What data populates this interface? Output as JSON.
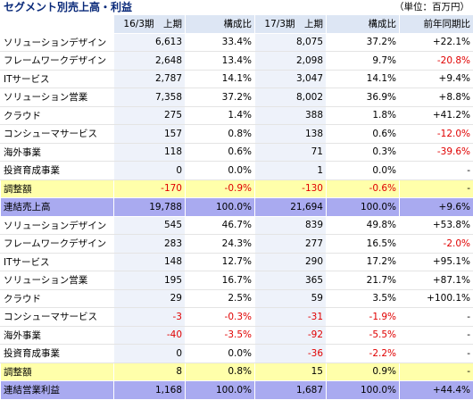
{
  "title": "セグメント別売上高・利益",
  "unit": "（単位：百万円）",
  "headers": [
    "16/3期　上期",
    "構成比",
    "17/3期　上期",
    "構成比",
    "前年同期比"
  ],
  "rows": [
    {
      "type": "normal",
      "cells": [
        "ソリューションデザイン",
        "6,613",
        "33.4%",
        "8,075",
        "37.2%",
        "+22.1%"
      ],
      "neg": []
    },
    {
      "type": "normal",
      "cells": [
        "フレームワークデザイン",
        "2,648",
        "13.4%",
        "2,098",
        "9.7%",
        "-20.8%"
      ],
      "neg": [
        5
      ]
    },
    {
      "type": "normal",
      "cells": [
        "ITサービス",
        "2,787",
        "14.1%",
        "3,047",
        "14.1%",
        "+9.4%"
      ],
      "neg": []
    },
    {
      "type": "normal",
      "cells": [
        "ソリューション営業",
        "7,358",
        "37.2%",
        "8,002",
        "36.9%",
        "+8.8%"
      ],
      "neg": []
    },
    {
      "type": "normal",
      "cells": [
        "クラウド",
        "275",
        "1.4%",
        "388",
        "1.8%",
        "+41.2%"
      ],
      "neg": []
    },
    {
      "type": "normal",
      "cells": [
        "コンシューマサービス",
        "157",
        "0.8%",
        "138",
        "0.6%",
        "-12.0%"
      ],
      "neg": [
        5
      ]
    },
    {
      "type": "normal",
      "cells": [
        "海外事業",
        "118",
        "0.6%",
        "71",
        "0.3%",
        "-39.6%"
      ],
      "neg": [
        5
      ]
    },
    {
      "type": "normal",
      "cells": [
        "投資育成事業",
        "0",
        "0.0%",
        "1",
        "0.0%",
        "-"
      ],
      "neg": []
    },
    {
      "type": "adjust",
      "cells": [
        "調整額",
        "-170",
        "-0.9%",
        "-130",
        "-0.6%",
        "-"
      ],
      "neg": [
        1,
        2,
        3,
        4
      ]
    },
    {
      "type": "total",
      "cells": [
        "連結売上高",
        "19,788",
        "100.0%",
        "21,694",
        "100.0%",
        "+9.6%"
      ],
      "neg": []
    },
    {
      "type": "normal",
      "cells": [
        "ソリューションデザイン",
        "545",
        "46.7%",
        "839",
        "49.8%",
        "+53.8%"
      ],
      "neg": []
    },
    {
      "type": "normal",
      "cells": [
        "フレームワークデザイン",
        "283",
        "24.3%",
        "277",
        "16.5%",
        "-2.0%"
      ],
      "neg": [
        5
      ]
    },
    {
      "type": "normal",
      "cells": [
        "ITサービス",
        "148",
        "12.7%",
        "290",
        "17.2%",
        "+95.1%"
      ],
      "neg": []
    },
    {
      "type": "normal",
      "cells": [
        "ソリューション営業",
        "195",
        "16.7%",
        "365",
        "21.7%",
        "+87.1%"
      ],
      "neg": []
    },
    {
      "type": "normal",
      "cells": [
        "クラウド",
        "29",
        "2.5%",
        "59",
        "3.5%",
        "+100.1%"
      ],
      "neg": []
    },
    {
      "type": "normal",
      "cells": [
        "コンシューマサービス",
        "-3",
        "-0.3%",
        "-31",
        "-1.9%",
        "-"
      ],
      "neg": [
        1,
        2,
        3,
        4
      ]
    },
    {
      "type": "normal",
      "cells": [
        "海外事業",
        "-40",
        "-3.5%",
        "-92",
        "-5.5%",
        "-"
      ],
      "neg": [
        1,
        2,
        3,
        4
      ]
    },
    {
      "type": "normal",
      "cells": [
        "投資育成事業",
        "0",
        "0.0%",
        "-36",
        "-2.2%",
        "-"
      ],
      "neg": [
        3,
        4
      ]
    },
    {
      "type": "adjust",
      "cells": [
        "調整額",
        "8",
        "0.8%",
        "15",
        "0.9%",
        "-"
      ],
      "neg": []
    },
    {
      "type": "total",
      "cells": [
        "連結営業利益",
        "1,168",
        "100.0%",
        "1,687",
        "100.0%",
        "+44.4%"
      ],
      "neg": []
    }
  ]
}
